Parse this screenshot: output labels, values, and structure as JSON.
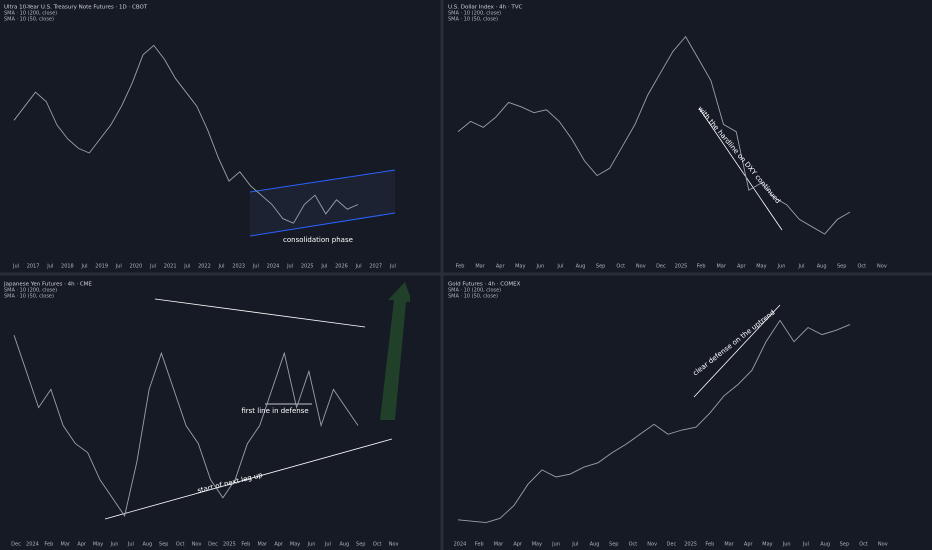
{
  "panels": [
    {
      "title": "Ultra 10-Year U.S. Treasury Note Futures · 1D · CBOT",
      "indicators": [
        "SMA · 10 (200, close)",
        "SMA · 10 (50, close)"
      ],
      "x_labels": [
        "Jul",
        "2017",
        "Jul",
        "2018",
        "Jul",
        "2019",
        "Jul",
        "2020",
        "Jul",
        "2021",
        "Jul",
        "2022",
        "Jul",
        "2023",
        "Jul",
        "2024",
        "Jul",
        "2025",
        "Jul",
        "2026",
        "Jul",
        "2027",
        "Jul"
      ],
      "annotations": [
        "consolidation phase"
      ],
      "ylim": [
        105,
        155
      ],
      "price": [
        134,
        137,
        140,
        138,
        133,
        130,
        128,
        127,
        130,
        133,
        137,
        142,
        148,
        150,
        147,
        143,
        140,
        137,
        132,
        126,
        121,
        123,
        120,
        118,
        116,
        113,
        112,
        116,
        118,
        114,
        117,
        115,
        116
      ]
    },
    {
      "title": "U.S. Dollar Index · 4h · TVC",
      "indicators": [
        "SMA · 10 (200, close)",
        "SMA · 10 (50, close)"
      ],
      "x_labels": [
        "Feb",
        "Mar",
        "Apr",
        "May",
        "Jun",
        "Jul",
        "Aug",
        "Sep",
        "Oct",
        "Nov",
        "Dec",
        "2025",
        "Feb",
        "Mar",
        "Apr",
        "May",
        "Jun",
        "Jul",
        "Aug",
        "Sep",
        "Oct",
        "Nov"
      ],
      "annotations": [
        "with the hardline on DXY continued"
      ],
      "ylim": [
        95,
        111
      ],
      "price": [
        103.5,
        104.2,
        103.8,
        104.5,
        105.5,
        105.2,
        104.8,
        105.0,
        104.2,
        103.0,
        101.5,
        100.5,
        101.0,
        102.5,
        104.0,
        106.0,
        107.5,
        109.0,
        110.0,
        108.5,
        107.0,
        104.0,
        103.5,
        99.5,
        100.0,
        99.0,
        98.5,
        97.5,
        97.0,
        96.5,
        97.5,
        98.0
      ]
    },
    {
      "title": "Japanese Yen Futures · 4h · CME",
      "indicators": [
        "SMA · 10 (200, close)",
        "SMA · 10 (50, close)"
      ],
      "x_labels": [
        "Dec",
        "2024",
        "Feb",
        "Mar",
        "Apr",
        "May",
        "Jun",
        "Jul",
        "Aug",
        "Sep",
        "Oct",
        "Nov",
        "Dec",
        "2025",
        "Feb",
        "Mar",
        "Apr",
        "May",
        "Jun",
        "Jul",
        "Aug",
        "Sep",
        "Oct",
        "Nov"
      ],
      "annotations": [
        "first line in defense",
        "start of next leg up"
      ],
      "ylim": [
        0.0061,
        0.0074
      ],
      "price": [
        0.0072,
        0.007,
        0.0068,
        0.0069,
        0.0067,
        0.0066,
        0.00655,
        0.0064,
        0.0063,
        0.0062,
        0.0065,
        0.0069,
        0.0071,
        0.0069,
        0.0067,
        0.0066,
        0.0064,
        0.0063,
        0.0064,
        0.0066,
        0.0067,
        0.0069,
        0.0071,
        0.0068,
        0.007,
        0.0067,
        0.0069,
        0.0068,
        0.0067
      ]
    },
    {
      "title": "Gold Futures · 4h · COMEX",
      "indicators": [
        "SMA · 10 (200, close)",
        "SMA · 10 (50, close)"
      ],
      "x_labels": [
        "2024",
        "Feb",
        "Mar",
        "Apr",
        "May",
        "Jun",
        "Jul",
        "Aug",
        "Sep",
        "Oct",
        "Nov",
        "Dec",
        "2025",
        "Feb",
        "Mar",
        "Apr",
        "May",
        "Jun",
        "Jul",
        "Aug",
        "Sep",
        "Oct",
        "Nov"
      ],
      "annotations": [
        "clear defense on the uptrend"
      ],
      "ylim": [
        1950,
        3600
      ],
      "price": [
        2050,
        2040,
        2030,
        2060,
        2150,
        2300,
        2400,
        2350,
        2370,
        2420,
        2450,
        2520,
        2580,
        2650,
        2720,
        2650,
        2680,
        2700,
        2800,
        2920,
        3000,
        3100,
        3300,
        3450,
        3300,
        3400,
        3350,
        3380,
        3420
      ]
    }
  ]
}
